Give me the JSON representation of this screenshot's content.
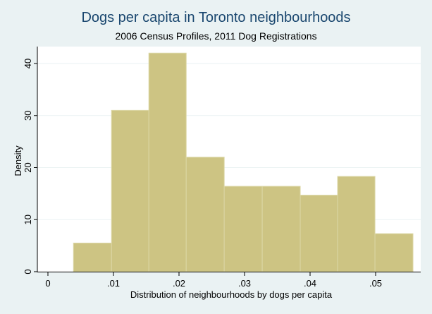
{
  "chart_data": {
    "type": "bar",
    "title": "Dogs per capita in Toronto neighbourhoods",
    "subtitle": "2006 Census Profiles, 2011 Dog Registrations",
    "xlabel": "Distribution of neighbourhoods by dogs per capita",
    "ylabel": "Density",
    "bin_edges": [
      0.0039,
      0.0097,
      0.0154,
      0.0211,
      0.0269,
      0.0327,
      0.0385,
      0.0442,
      0.0499,
      0.0557
    ],
    "values": [
      5.5,
      31.0,
      42.0,
      22.0,
      16.4,
      16.4,
      14.7,
      18.3,
      7.3
    ],
    "xlim": [
      -0.0005,
      0.057
    ],
    "ylim": [
      0,
      43
    ],
    "xticks": [
      "0",
      ".01",
      ".02",
      ".03",
      ".04",
      ".05"
    ],
    "xtick_values": [
      0,
      0.01,
      0.02,
      0.03,
      0.04,
      0.05
    ],
    "yticks": [
      "0",
      "10",
      "20",
      "30",
      "40"
    ],
    "ytick_values": [
      0,
      10,
      20,
      30,
      40
    ],
    "grid": true,
    "colors": {
      "bar": "#cdc483",
      "bar_edge": "#dcd7a6",
      "title": "#1a476f",
      "background": "#eaf2f3",
      "plot": "#ffffff",
      "grid": "#eaf2f3"
    }
  }
}
